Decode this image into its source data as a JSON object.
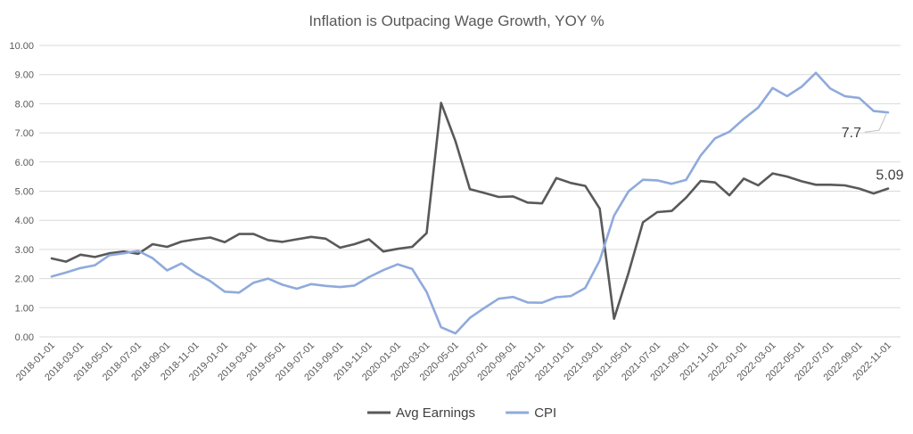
{
  "chart_data": {
    "type": "line",
    "title": "Inflation is Outpacing Wage Growth, YOY %",
    "xlabel": "",
    "ylabel": "",
    "ylim": [
      0,
      10
    ],
    "y_ticks": [
      "0.00",
      "1.00",
      "2.00",
      "3.00",
      "4.00",
      "5.00",
      "6.00",
      "7.00",
      "8.00",
      "9.00",
      "10.00"
    ],
    "grid": true,
    "legend_position": "bottom",
    "x": [
      "2018-01-01",
      "2018-02-01",
      "2018-03-01",
      "2018-04-01",
      "2018-05-01",
      "2018-06-01",
      "2018-07-01",
      "2018-08-01",
      "2018-09-01",
      "2018-10-01",
      "2018-11-01",
      "2018-12-01",
      "2019-01-01",
      "2019-02-01",
      "2019-03-01",
      "2019-04-01",
      "2019-05-01",
      "2019-06-01",
      "2019-07-01",
      "2019-08-01",
      "2019-09-01",
      "2019-10-01",
      "2019-11-01",
      "2019-12-01",
      "2020-01-01",
      "2020-02-01",
      "2020-03-01",
      "2020-04-01",
      "2020-05-01",
      "2020-06-01",
      "2020-07-01",
      "2020-08-01",
      "2020-09-01",
      "2020-10-01",
      "2020-11-01",
      "2020-12-01",
      "2021-01-01",
      "2021-02-01",
      "2021-03-01",
      "2021-04-01",
      "2021-05-01",
      "2021-06-01",
      "2021-07-01",
      "2021-08-01",
      "2021-09-01",
      "2021-10-01",
      "2021-11-01",
      "2021-12-01",
      "2022-01-01",
      "2022-02-01",
      "2022-03-01",
      "2022-04-01",
      "2022-05-01",
      "2022-06-01",
      "2022-07-01",
      "2022-08-01",
      "2022-09-01",
      "2022-10-01",
      "2022-11-01"
    ],
    "x_tick_labels": [
      "2018-01-01",
      "2018-03-01",
      "2018-05-01",
      "2018-07-01",
      "2018-09-01",
      "2018-11-01",
      "2019-01-01",
      "2019-03-01",
      "2019-05-01",
      "2019-07-01",
      "2019-09-01",
      "2019-11-01",
      "2020-01-01",
      "2020-03-01",
      "2020-05-01",
      "2020-07-01",
      "2020-09-01",
      "2020-11-01",
      "2021-01-01",
      "2021-03-01",
      "2021-05-01",
      "2021-07-01",
      "2021-09-01",
      "2021-11-01",
      "2022-01-01",
      "2022-03-01",
      "2022-05-01",
      "2022-07-01",
      "2022-09-01",
      "2022-11-01"
    ],
    "series": [
      {
        "name": "Avg Earnings",
        "color": "#595959",
        "values": [
          2.69,
          2.58,
          2.82,
          2.74,
          2.87,
          2.93,
          2.85,
          3.18,
          3.09,
          3.27,
          3.35,
          3.41,
          3.25,
          3.53,
          3.53,
          3.32,
          3.26,
          3.35,
          3.43,
          3.37,
          3.06,
          3.18,
          3.35,
          2.93,
          3.02,
          3.09,
          3.56,
          8.03,
          6.72,
          5.07,
          4.94,
          4.8,
          4.82,
          4.61,
          4.58,
          5.45,
          5.28,
          5.18,
          4.4,
          0.62,
          2.19,
          3.93,
          4.28,
          4.32,
          4.78,
          5.35,
          5.3,
          4.86,
          5.43,
          5.2,
          5.61,
          5.5,
          5.34,
          5.22,
          5.22,
          5.2,
          5.09,
          4.92,
          5.09
        ]
      },
      {
        "name": "CPI",
        "color": "#8faadc",
        "values": [
          2.07,
          2.21,
          2.36,
          2.46,
          2.8,
          2.87,
          2.95,
          2.7,
          2.28,
          2.52,
          2.18,
          1.91,
          1.55,
          1.52,
          1.86,
          2.0,
          1.79,
          1.65,
          1.81,
          1.75,
          1.71,
          1.76,
          2.05,
          2.29,
          2.49,
          2.33,
          1.54,
          0.33,
          0.12,
          0.65,
          0.99,
          1.31,
          1.37,
          1.18,
          1.17,
          1.36,
          1.4,
          1.68,
          2.62,
          4.16,
          4.99,
          5.39,
          5.37,
          5.25,
          5.39,
          6.22,
          6.81,
          7.04,
          7.48,
          7.87,
          8.54,
          8.26,
          8.58,
          9.06,
          8.52,
          8.26,
          8.2,
          7.75,
          7.7
        ]
      }
    ],
    "annotations": [
      {
        "text": "7.7",
        "series": "CPI",
        "x": "2022-11-01",
        "y": 7.7
      },
      {
        "text": "5.09",
        "series": "Avg Earnings",
        "x": "2022-11-01",
        "y": 5.09
      }
    ]
  }
}
